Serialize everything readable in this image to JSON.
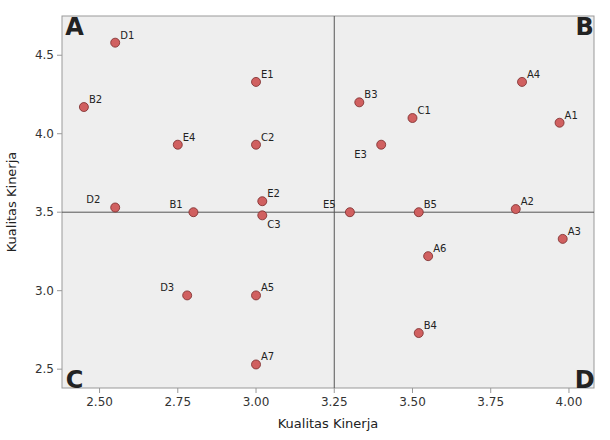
{
  "chart_data": {
    "type": "scatter",
    "xlabel": "Kualitas Kinerja",
    "ylabel": "Kualitas Kinerja",
    "point_labels": [
      "D1",
      "B2",
      "E4",
      "C2",
      "E1",
      "D2",
      "B1",
      "E2",
      "C3",
      "D3",
      "A5",
      "A7",
      "B3",
      "C1",
      "E3",
      "A4",
      "A1",
      "E5",
      "B5",
      "A2",
      "A3",
      "A6",
      "B4"
    ],
    "x": [
      2.55,
      2.45,
      2.75,
      3.0,
      3.0,
      2.55,
      2.8,
      3.02,
      3.02,
      2.78,
      3.0,
      3.0,
      3.33,
      3.5,
      3.4,
      3.85,
      3.97,
      3.3,
      3.52,
      3.83,
      3.98,
      3.55,
      3.52
    ],
    "values": [
      4.58,
      4.17,
      3.93,
      3.93,
      4.33,
      3.53,
      3.5,
      3.57,
      3.48,
      2.97,
      2.97,
      2.53,
      4.2,
      4.1,
      3.93,
      4.33,
      4.07,
      3.5,
      3.5,
      3.52,
      3.33,
      3.22,
      2.73
    ],
    "color": "#d06060",
    "mean_x": 3.25,
    "mean_y": 3.5,
    "annotations": [
      {
        "text": "A",
        "x": 2.42,
        "y": 4.68
      },
      {
        "text": "B",
        "x": 4.05,
        "y": 4.68
      },
      {
        "text": "C",
        "x": 2.42,
        "y": 2.43
      },
      {
        "text": "D",
        "x": 4.05,
        "y": 2.43
      }
    ],
    "xlim": [
      2.38,
      4.08
    ],
    "ylim": [
      2.38,
      4.75
    ],
    "xticks": [
      {
        "value": 2.5,
        "label": "2.50"
      },
      2.75,
      {
        "value": 3,
        "label": "3.00"
      },
      3.25,
      {
        "value": 3.5,
        "label": "3.50"
      },
      3.75,
      {
        "value": 4,
        "label": "4.00"
      }
    ],
    "yticks": [
      2.5,
      {
        "value": 3,
        "label": "3.0"
      },
      3.5,
      {
        "value": 4,
        "label": "4.0"
      },
      4.5
    ],
    "grid": false
  }
}
